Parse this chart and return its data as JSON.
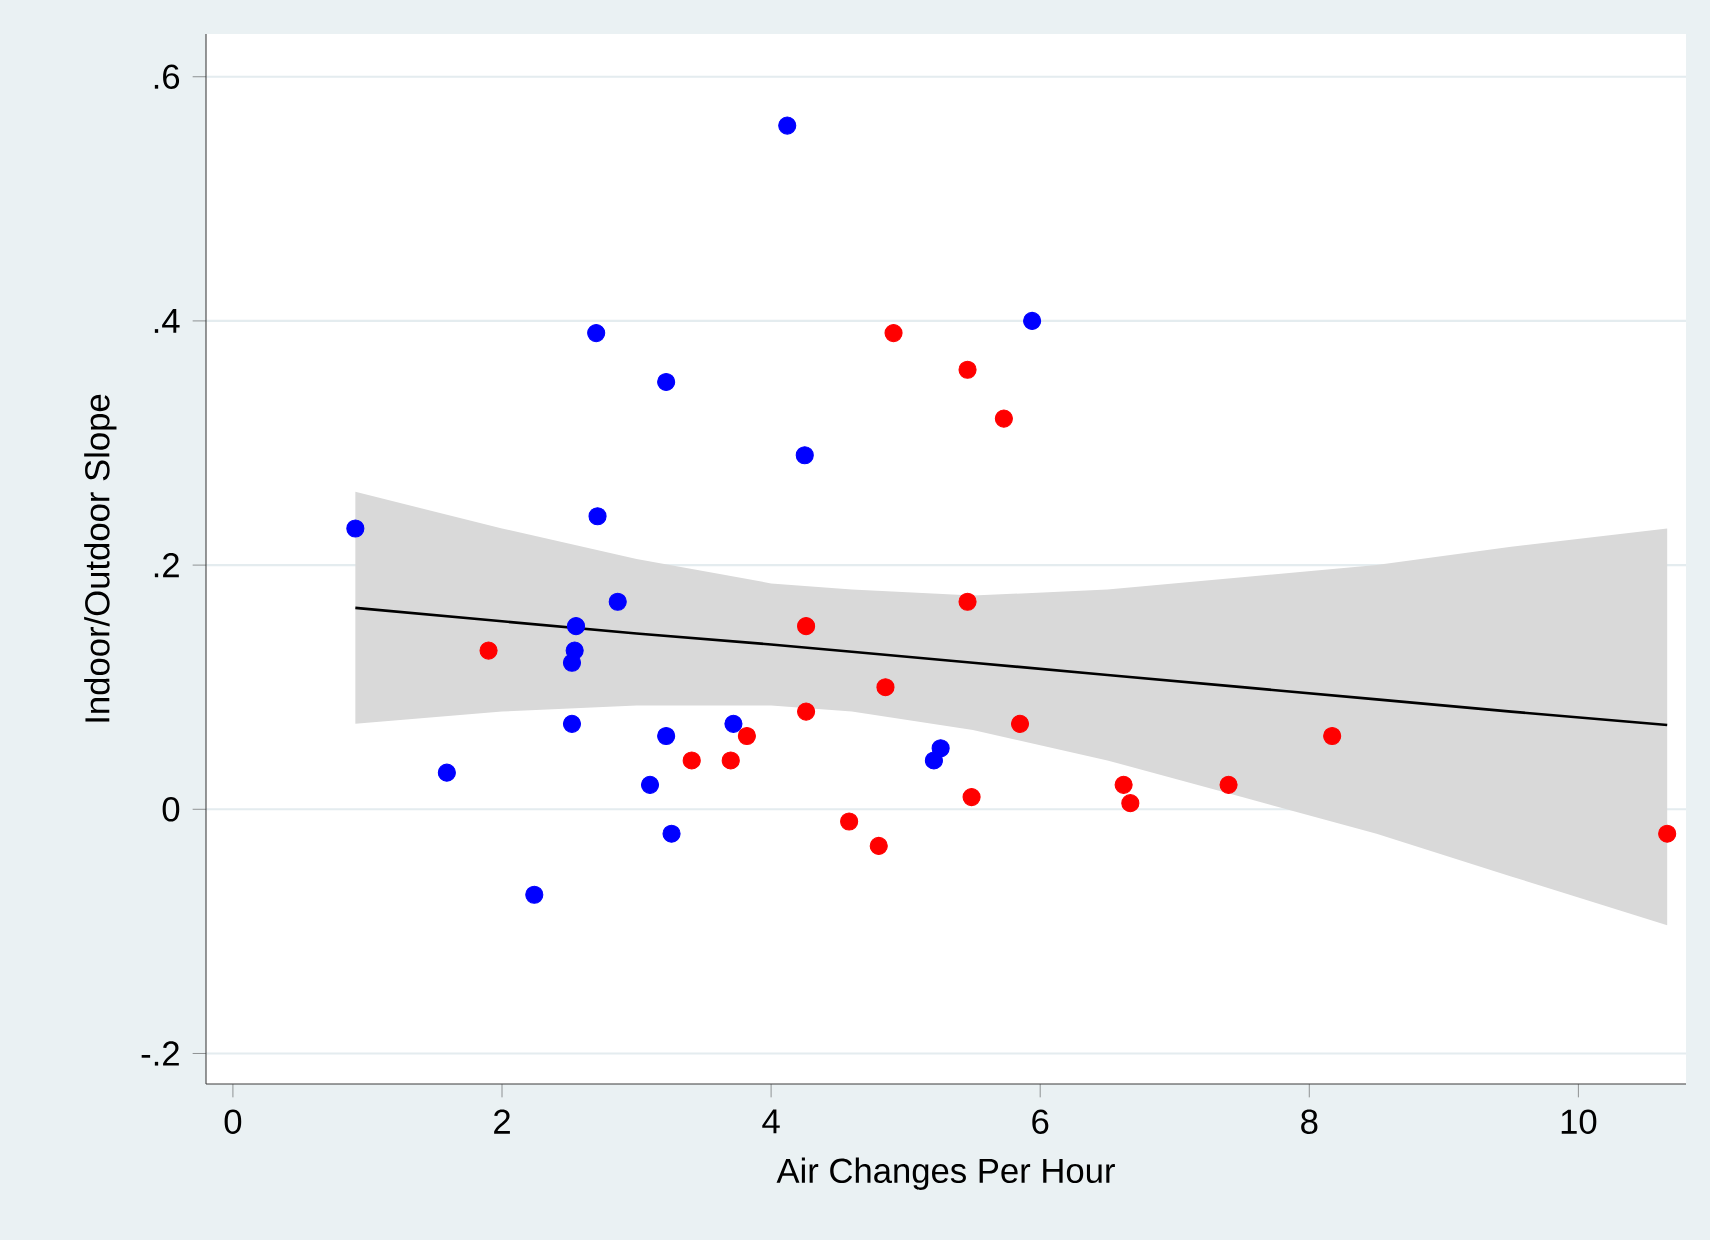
{
  "chart_data": {
    "type": "scatter",
    "xlabel": "Air Changes Per Hour",
    "ylabel": "Indoor/Outdoor Slope",
    "xlim": [
      -0.2,
      10.8
    ],
    "ylim": [
      -0.225,
      0.635
    ],
    "xticks": [
      0,
      2,
      4,
      6,
      8,
      10
    ],
    "yticks": [
      {
        "value": -0.2,
        "label": "-.2"
      },
      {
        "value": 0,
        "label": "0"
      },
      {
        "value": 0.2,
        "label": ".2"
      },
      {
        "value": 0.4,
        "label": ".4"
      },
      {
        "value": 0.6,
        "label": ".6"
      }
    ],
    "grid": "y",
    "marker": "circle",
    "series": [
      {
        "color": "#0000ff",
        "x": [
          0.91,
          1.59,
          2.24,
          2.7,
          2.71,
          3.22,
          4.12,
          4.25,
          2.86,
          2.55,
          2.54,
          2.52,
          2.52,
          3.22,
          3.72,
          3.1,
          3.26,
          5.21,
          5.26,
          5.94
        ],
        "values": [
          0.23,
          0.03,
          -0.07,
          0.39,
          0.24,
          0.35,
          0.56,
          0.29,
          0.17,
          0.15,
          0.13,
          0.12,
          0.07,
          0.06,
          0.07,
          0.02,
          -0.02,
          0.04,
          0.05,
          0.4
        ]
      },
      {
        "color": "#ff0000",
        "x": [
          1.9,
          3.41,
          3.7,
          3.82,
          4.26,
          4.26,
          4.85,
          4.58,
          4.8,
          4.91,
          5.46,
          5.73,
          5.46,
          5.49,
          5.85,
          6.62,
          6.67,
          7.4,
          8.17,
          10.66
        ],
        "values": [
          0.13,
          0.04,
          0.04,
          0.06,
          0.15,
          0.08,
          0.1,
          -0.01,
          -0.03,
          0.39,
          0.36,
          0.32,
          0.17,
          0.01,
          0.07,
          0.02,
          0.005,
          0.02,
          0.06,
          -0.02
        ]
      },
      {
        "type": "line",
        "color": "#000000",
        "marker": "none",
        "x": [
          0.91,
          2,
          3,
          4,
          4.6,
          5.5,
          6.5,
          7.5,
          8.5,
          9.5,
          10.66
        ],
        "values": [
          0.165,
          0.154,
          0.144,
          0.135,
          0.129,
          0.12,
          0.11,
          0.1,
          0.09,
          0.08,
          0.069
        ],
        "lower": [
          0.07,
          0.08,
          0.085,
          0.085,
          0.08,
          0.065,
          0.04,
          0.01,
          -0.02,
          -0.055,
          -0.095
        ],
        "upper": [
          0.26,
          0.23,
          0.205,
          0.185,
          0.18,
          0.175,
          0.18,
          0.19,
          0.2,
          0.215,
          0.23
        ]
      }
    ]
  }
}
